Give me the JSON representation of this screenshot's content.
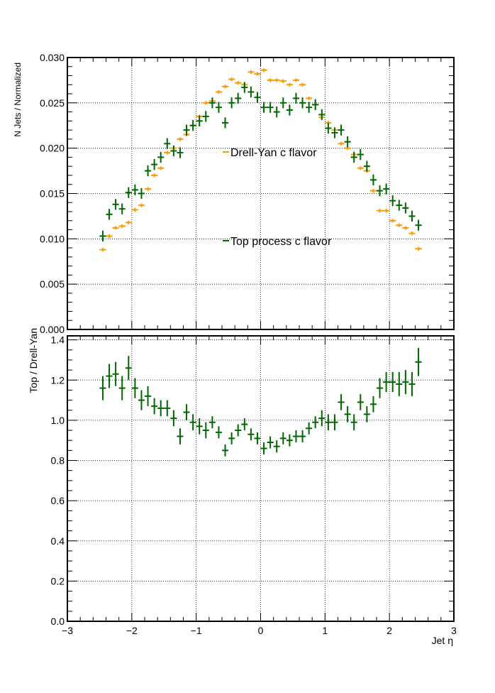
{
  "chart_data": [
    {
      "type": "scatter",
      "title": "",
      "xlabel": "",
      "ylabel": "N Jets / Normalized",
      "xlim": [
        -3,
        3
      ],
      "ylim": [
        0.0,
        0.03
      ],
      "grid": true,
      "legend_placement": "center",
      "y_ticks": [
        "0.000",
        "0.005",
        "0.010",
        "0.015",
        "0.020",
        "0.025",
        "0.030"
      ],
      "x_ticks": [],
      "bin_half_width": 0.05,
      "series": [
        {
          "name": "Drell-Yan c flavor",
          "color": "#ff9900",
          "x": [
            -2.45,
            -2.35,
            -2.25,
            -2.15,
            -2.05,
            -1.95,
            -1.85,
            -1.75,
            -1.65,
            -1.55,
            -1.45,
            -1.35,
            -1.25,
            -1.15,
            -1.05,
            -0.95,
            -0.85,
            -0.75,
            -0.65,
            -0.55,
            -0.45,
            -0.35,
            -0.25,
            -0.15,
            -0.05,
            0.05,
            0.15,
            0.25,
            0.35,
            0.45,
            0.55,
            0.65,
            0.75,
            0.85,
            0.95,
            1.05,
            1.15,
            1.25,
            1.35,
            1.45,
            1.55,
            1.65,
            1.75,
            1.85,
            1.95,
            2.05,
            2.15,
            2.25,
            2.35,
            2.45
          ],
          "values": [
            0.0088,
            0.0103,
            0.0112,
            0.0114,
            0.0118,
            0.0132,
            0.0137,
            0.0155,
            0.017,
            0.0178,
            0.0195,
            0.02,
            0.021,
            0.0215,
            0.0225,
            0.0235,
            0.025,
            0.0252,
            0.0262,
            0.0268,
            0.0276,
            0.0272,
            0.027,
            0.0284,
            0.0282,
            0.0286,
            0.0275,
            0.0275,
            0.0274,
            0.027,
            0.0275,
            0.027,
            0.0255,
            0.0248,
            0.0234,
            0.0228,
            0.022,
            0.0205,
            0.02,
            0.0193,
            0.0178,
            0.0175,
            0.0153,
            0.0131,
            0.0131,
            0.012,
            0.0115,
            0.0112,
            0.0106,
            0.0089
          ],
          "err": [
            0.0002,
            0.0002,
            0.0002,
            0.0002,
            0.0002,
            0.0002,
            0.0002,
            0.0002,
            0.0002,
            0.0002,
            0.0002,
            0.0002,
            0.0002,
            0.0002,
            0.0002,
            0.0002,
            0.0002,
            0.0002,
            0.0002,
            0.0002,
            0.0002,
            0.0002,
            0.0002,
            0.0002,
            0.0002,
            0.0002,
            0.0002,
            0.0002,
            0.0002,
            0.0002,
            0.0002,
            0.0002,
            0.0002,
            0.0002,
            0.0002,
            0.0002,
            0.0002,
            0.0002,
            0.0002,
            0.0002,
            0.0002,
            0.0002,
            0.0002,
            0.0002,
            0.0002,
            0.0002,
            0.0002,
            0.0002,
            0.0002,
            0.0002
          ]
        },
        {
          "name": "Top process c flavor",
          "color": "#006600",
          "x": [
            -2.45,
            -2.35,
            -2.25,
            -2.15,
            -2.05,
            -1.95,
            -1.85,
            -1.75,
            -1.65,
            -1.55,
            -1.45,
            -1.35,
            -1.25,
            -1.15,
            -1.05,
            -0.95,
            -0.85,
            -0.75,
            -0.65,
            -0.55,
            -0.45,
            -0.35,
            -0.25,
            -0.15,
            -0.05,
            0.05,
            0.15,
            0.25,
            0.35,
            0.45,
            0.55,
            0.65,
            0.75,
            0.85,
            0.95,
            1.05,
            1.15,
            1.25,
            1.35,
            1.45,
            1.55,
            1.65,
            1.75,
            1.85,
            1.95,
            2.05,
            2.15,
            2.25,
            2.35,
            2.45
          ],
          "values": [
            0.0103,
            0.0127,
            0.0138,
            0.0133,
            0.0151,
            0.0154,
            0.015,
            0.0175,
            0.0182,
            0.019,
            0.0205,
            0.0197,
            0.0195,
            0.022,
            0.0225,
            0.023,
            0.0235,
            0.025,
            0.0245,
            0.0228,
            0.025,
            0.0255,
            0.0267,
            0.0262,
            0.0256,
            0.0245,
            0.0245,
            0.024,
            0.025,
            0.0242,
            0.0255,
            0.025,
            0.0245,
            0.0248,
            0.0237,
            0.0222,
            0.0217,
            0.022,
            0.0207,
            0.019,
            0.0193,
            0.018,
            0.0165,
            0.0153,
            0.0155,
            0.0142,
            0.0137,
            0.0134,
            0.0125,
            0.0115
          ],
          "err": [
            0.0006,
            0.0006,
            0.0006,
            0.0006,
            0.0006,
            0.0006,
            0.0006,
            0.0006,
            0.0006,
            0.0006,
            0.0006,
            0.0006,
            0.0006,
            0.0006,
            0.0006,
            0.0006,
            0.0006,
            0.0006,
            0.0006,
            0.0006,
            0.0006,
            0.0006,
            0.0006,
            0.0006,
            0.0006,
            0.0006,
            0.0006,
            0.0006,
            0.0006,
            0.0006,
            0.0006,
            0.0006,
            0.0006,
            0.0006,
            0.0006,
            0.0006,
            0.0006,
            0.0006,
            0.0006,
            0.0006,
            0.0006,
            0.0006,
            0.0006,
            0.0006,
            0.0006,
            0.0006,
            0.0006,
            0.0006,
            0.0006,
            0.0006
          ]
        }
      ]
    },
    {
      "type": "scatter",
      "title": "",
      "xlabel": "Jet η",
      "ylabel": "Top / Drell-Yan",
      "xlim": [
        -3,
        3
      ],
      "ylim": [
        0.0,
        1.42
      ],
      "grid": true,
      "y_ticks": [
        "0.0",
        "0.2",
        "0.4",
        "0.6",
        "0.8",
        "1.0",
        "1.2",
        "1.4"
      ],
      "x_ticks": [
        "−3",
        "−2",
        "−1",
        "0",
        "1",
        "2",
        "3"
      ],
      "bin_half_width": 0.05,
      "series": [
        {
          "color": "#006600",
          "x": [
            -2.45,
            -2.35,
            -2.25,
            -2.15,
            -2.05,
            -1.95,
            -1.85,
            -1.75,
            -1.65,
            -1.55,
            -1.45,
            -1.35,
            -1.25,
            -1.15,
            -1.05,
            -0.95,
            -0.85,
            -0.75,
            -0.65,
            -0.55,
            -0.45,
            -0.35,
            -0.25,
            -0.15,
            -0.05,
            0.05,
            0.15,
            0.25,
            0.35,
            0.45,
            0.55,
            0.65,
            0.75,
            0.85,
            0.95,
            1.05,
            1.15,
            1.25,
            1.35,
            1.45,
            1.55,
            1.65,
            1.75,
            1.85,
            1.95,
            2.05,
            2.15,
            2.25,
            2.35,
            2.45
          ],
          "values": [
            1.16,
            1.22,
            1.23,
            1.16,
            1.26,
            1.16,
            1.1,
            1.12,
            1.07,
            1.06,
            1.06,
            1.01,
            0.92,
            1.04,
            0.99,
            0.97,
            0.95,
            0.99,
            0.94,
            0.85,
            0.91,
            0.95,
            0.98,
            0.93,
            0.91,
            0.86,
            0.89,
            0.87,
            0.91,
            0.9,
            0.92,
            0.92,
            0.96,
            0.99,
            1.01,
            0.99,
            0.99,
            1.09,
            1.03,
            0.99,
            1.09,
            1.03,
            1.08,
            1.16,
            1.19,
            1.19,
            1.18,
            1.19,
            1.18,
            1.29
          ],
          "err": [
            0.06,
            0.06,
            0.06,
            0.06,
            0.06,
            0.05,
            0.05,
            0.05,
            0.04,
            0.04,
            0.04,
            0.04,
            0.04,
            0.04,
            0.04,
            0.04,
            0.04,
            0.03,
            0.03,
            0.03,
            0.03,
            0.03,
            0.03,
            0.03,
            0.03,
            0.03,
            0.03,
            0.03,
            0.03,
            0.03,
            0.03,
            0.03,
            0.03,
            0.03,
            0.04,
            0.04,
            0.04,
            0.04,
            0.04,
            0.04,
            0.04,
            0.04,
            0.04,
            0.05,
            0.05,
            0.05,
            0.06,
            0.06,
            0.06,
            0.07
          ]
        }
      ]
    }
  ]
}
